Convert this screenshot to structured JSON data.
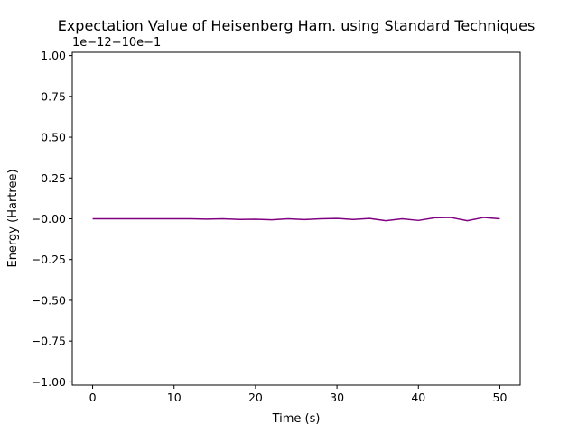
{
  "chart_data": {
    "type": "line",
    "title": "Expectation Value of Heisenberg Ham. using Standard Techniques",
    "xlabel": "Time (s)",
    "ylabel": "Energy (Hartree)",
    "y_offset_text": "1e−12−10e−1",
    "xlim": [
      -2.5,
      52.5
    ],
    "ylim": [
      -1.02,
      1.02
    ],
    "x_ticks": [
      0,
      10,
      20,
      30,
      40,
      50
    ],
    "x_tick_labels": [
      "0",
      "10",
      "20",
      "30",
      "40",
      "50"
    ],
    "y_ticks": [
      1.0,
      0.75,
      0.5,
      0.25,
      0.0,
      -0.25,
      -0.5,
      -0.75,
      -1.0
    ],
    "y_tick_labels": [
      "1.00",
      "0.75",
      "0.50",
      "0.25",
      "−0.00",
      "−0.25",
      "−0.50",
      "−0.75",
      "−1.00"
    ],
    "grid": false,
    "line_color": "#800080",
    "series": [
      {
        "x": [
          0,
          2,
          4,
          6,
          8,
          10,
          12,
          14,
          16,
          18,
          20,
          22,
          24,
          26,
          28,
          30,
          32,
          34,
          36,
          38,
          40,
          42,
          44,
          46,
          48,
          50
        ],
        "values": [
          0,
          0,
          0,
          0,
          0,
          0,
          0,
          -0.002,
          0,
          -0.004,
          -0.003,
          -0.006,
          0,
          -0.005,
          0,
          0.002,
          -0.004,
          0.002,
          -0.012,
          0,
          -0.01,
          0.006,
          0.008,
          -0.012,
          0.008,
          0
        ]
      }
    ]
  }
}
